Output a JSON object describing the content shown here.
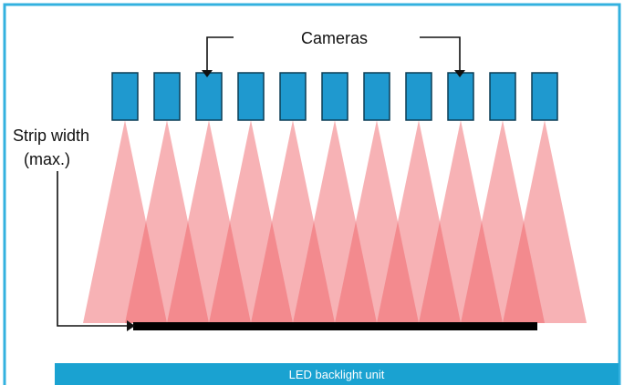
{
  "colors": {
    "frame": "#33b1df",
    "camera_fill": "#1f99cf",
    "camera_stroke": "#0b3d55",
    "cone": "#ee5e64",
    "strip": "#000000",
    "backlight": "#1aa2d1",
    "arrow": "#111111"
  },
  "labels": {
    "cameras": "Cameras",
    "strip_width_line1": "Strip width",
    "strip_width_line2": "(max.)",
    "backlight": "LED  backlight unit"
  },
  "cameras": {
    "count": 11
  }
}
